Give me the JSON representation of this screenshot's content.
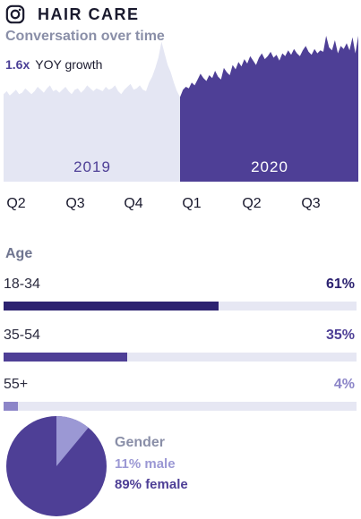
{
  "header": {
    "icon": "instagram-icon",
    "title": "HAIR CARE"
  },
  "subtitle": "Conversation over time",
  "growth": {
    "value": "1.6x",
    "label": "YOY growth"
  },
  "chart_data": {
    "type": "area",
    "periods": [
      "2019",
      "2020"
    ],
    "quarter_ticks": [
      "Q2",
      "Q3",
      "Q4",
      "Q1",
      "Q2",
      "Q3"
    ],
    "series": [
      {
        "values": [
          0.6,
          0.62,
          0.59,
          0.61,
          0.63,
          0.6,
          0.61,
          0.64,
          0.62,
          0.6,
          0.62,
          0.65,
          0.63,
          0.61,
          0.64,
          0.66,
          0.62,
          0.63,
          0.61,
          0.63,
          0.65,
          0.62,
          0.6,
          0.63,
          0.64,
          0.61,
          0.63,
          0.66,
          0.64,
          0.62,
          0.64,
          0.63,
          0.62,
          0.65,
          0.63,
          0.64,
          0.66,
          0.62,
          0.6,
          0.63,
          0.65,
          0.67,
          0.63,
          0.64,
          0.66,
          0.63,
          0.62,
          0.68,
          0.72,
          0.78,
          0.85,
          0.96,
          0.88,
          0.8,
          0.75,
          0.68,
          0.62,
          0.58
        ]
      },
      {
        "values": [
          0.58,
          0.63,
          0.65,
          0.64,
          0.68,
          0.66,
          0.7,
          0.74,
          0.71,
          0.69,
          0.73,
          0.71,
          0.76,
          0.72,
          0.7,
          0.78,
          0.75,
          0.73,
          0.8,
          0.77,
          0.82,
          0.79,
          0.84,
          0.81,
          0.86,
          0.83,
          0.8,
          0.85,
          0.88,
          0.84,
          0.86,
          0.89,
          0.85,
          0.87,
          0.83,
          0.88,
          0.86,
          0.9,
          0.87,
          0.91,
          0.88,
          0.86,
          0.9,
          0.93,
          0.89,
          0.87,
          0.91,
          0.88,
          0.9,
          0.89,
          1.0,
          0.92,
          0.9,
          0.97,
          0.88,
          0.93,
          0.91,
          0.95,
          0.9,
          0.99,
          0.88,
          1.0
        ]
      }
    ],
    "colors": {
      "y2019": "#e4e6f3",
      "y2020": "#4e3f96",
      "label2019": "#4e3f96",
      "label2020": "#ffffff",
      "ticks": "#1a1a2e"
    }
  },
  "age": {
    "label": "Age",
    "rows": [
      {
        "label": "18-34",
        "percent": "61%",
        "value": 61,
        "color": "#2c2270",
        "pct_color": "#2c2270"
      },
      {
        "label": "35-54",
        "percent": "35%",
        "value": 35,
        "color": "#4e3f96",
        "pct_color": "#4e3f96"
      },
      {
        "label": "55+",
        "percent": "4%",
        "value": 4,
        "color": "#8c85c8",
        "pct_color": "#8c85c8"
      }
    ]
  },
  "gender": {
    "title": "Gender",
    "male": "11% male",
    "female": "89% female",
    "male_value": 11,
    "female_value": 89,
    "male_color": "#9b98d4",
    "female_color": "#4e3f96"
  }
}
